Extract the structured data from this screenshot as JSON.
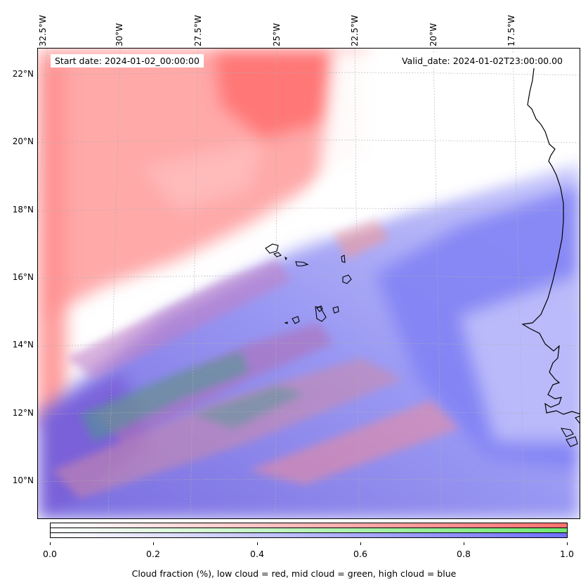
{
  "map": {
    "lon_labels": [
      "32.5°W",
      "30°W",
      "27.5°W",
      "25°W",
      "22.5°W",
      "20°W",
      "17.5°W"
    ],
    "lat_labels": [
      "22°N",
      "20°N",
      "18°N",
      "16°N",
      "14°N",
      "12°N",
      "10°N"
    ],
    "start_date": "Start date: 2024-01-02_00:00:00",
    "valid_date": "Valid_date: 2024-01-02T23:00:00.00",
    "gridlines": true,
    "colors": {
      "low_cloud": "#ff7070",
      "mid_cloud": "#70e870",
      "high_cloud": "#7070ff",
      "coastline": "#000000"
    }
  },
  "colorbar": {
    "ticks": [
      "0.0",
      "0.2",
      "0.4",
      "0.6",
      "0.8",
      "1.0"
    ],
    "label": "Cloud fraction (%), low cloud = red, mid cloud = green, high cloud = blue"
  }
}
